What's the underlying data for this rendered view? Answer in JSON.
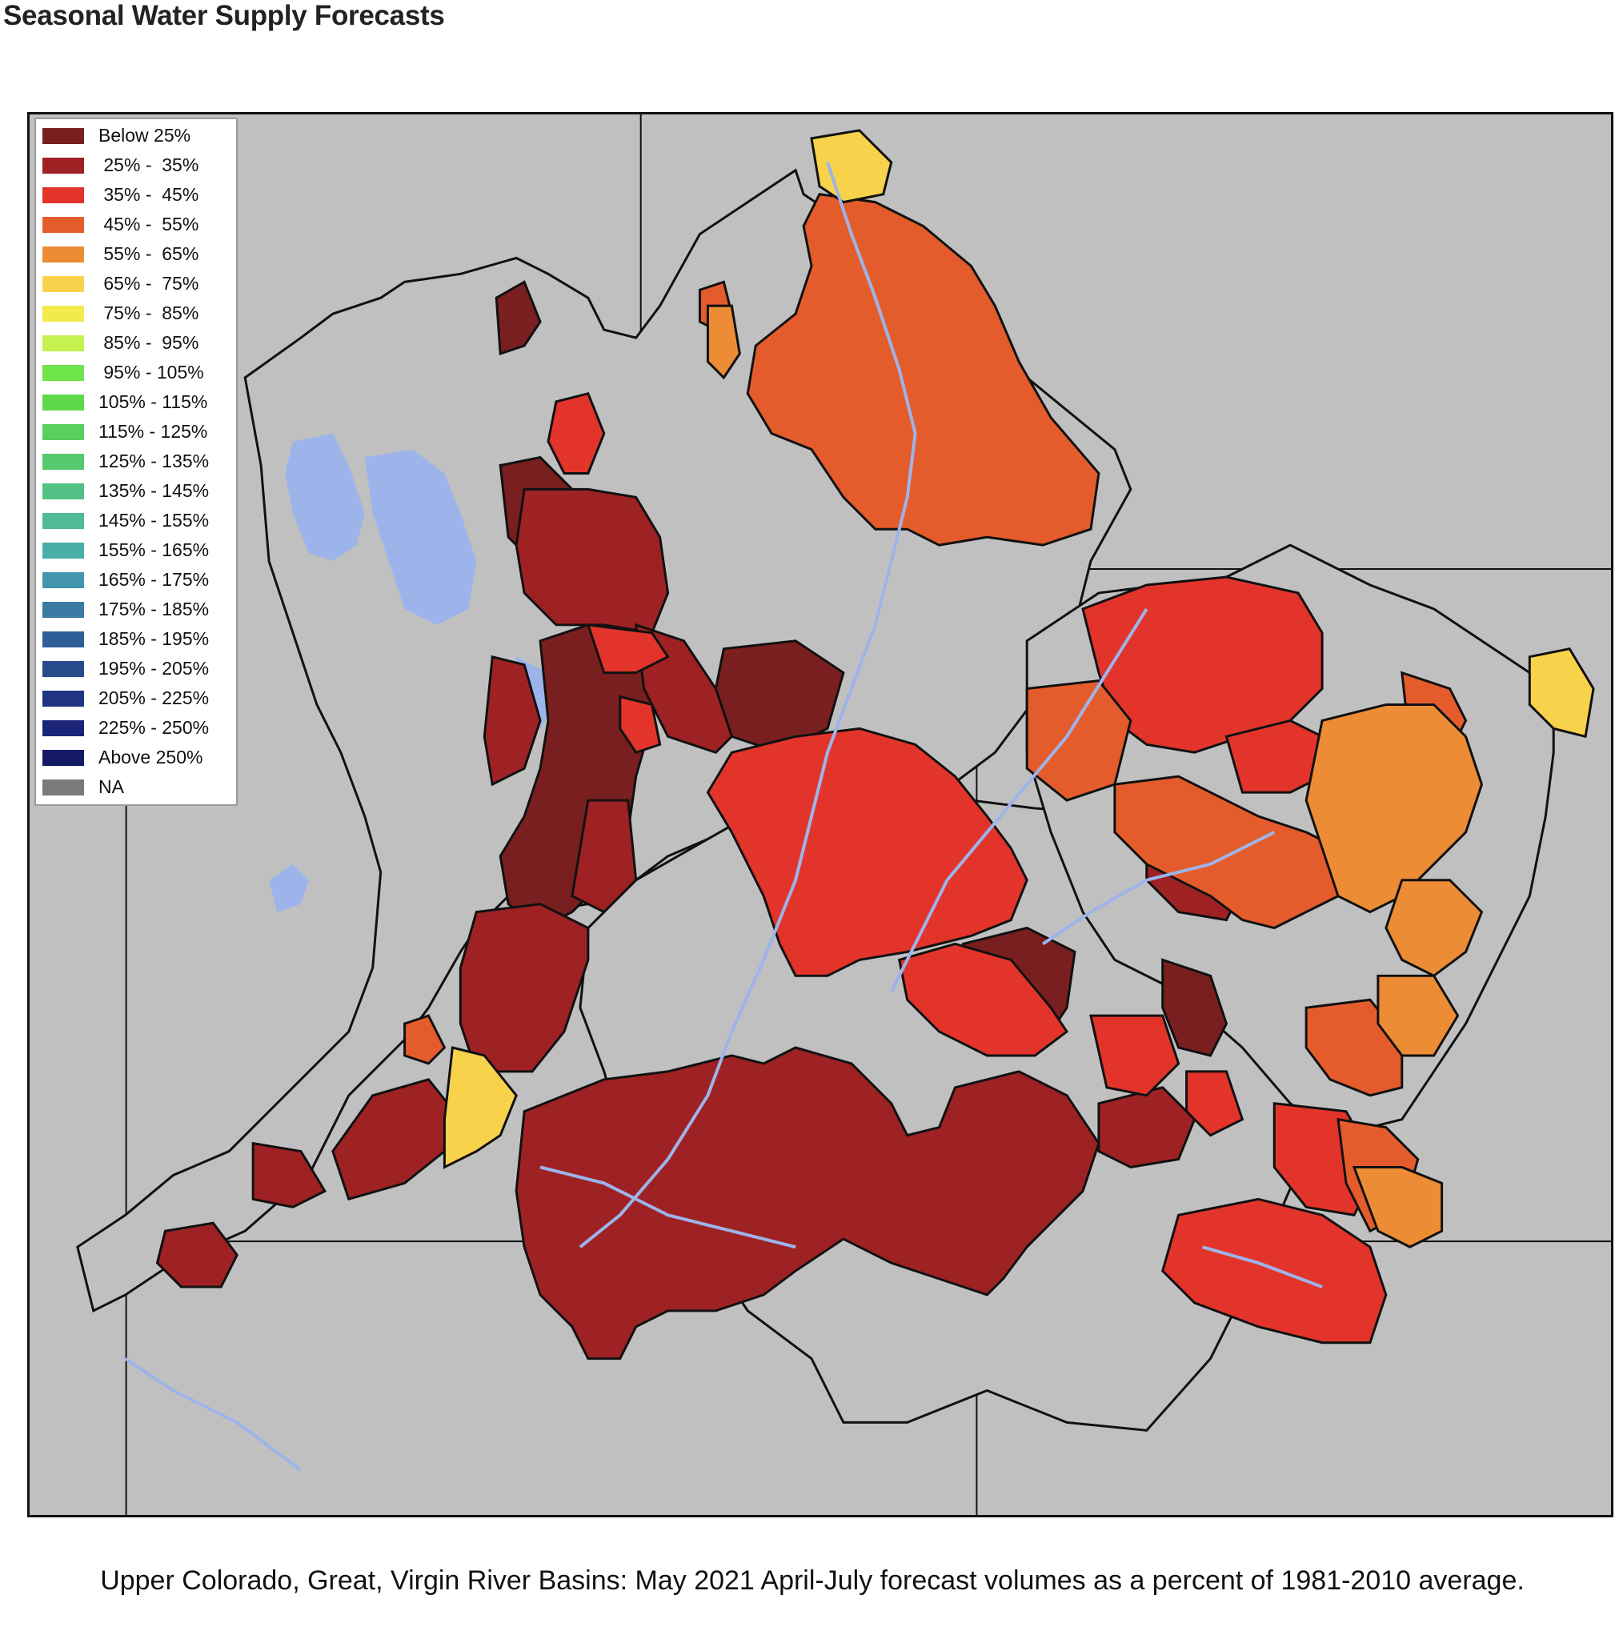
{
  "title": "Seasonal Water Supply Forecasts",
  "caption": "Upper Colorado, Great, Virgin River Basins: May 2021 April-July forecast volumes as a percent of 1981-2010 average.",
  "map_colors": {
    "background": "#c0c0c0",
    "water": "#9db4ea",
    "na": "#c0c0c0"
  },
  "legend": [
    {
      "label": "Below 25%",
      "color": "#7a1f1f"
    },
    {
      "label": " 25% -  35%",
      "color": "#9e2224"
    },
    {
      "label": " 35% -  45%",
      "color": "#e3342b"
    },
    {
      "label": " 45% -  55%",
      "color": "#e55c2c"
    },
    {
      "label": " 55% -  65%",
      "color": "#ec8c34"
    },
    {
      "label": " 65% -  75%",
      "color": "#f8d24a"
    },
    {
      "label": " 75% -  85%",
      "color": "#f3ea4b"
    },
    {
      "label": " 85% -  95%",
      "color": "#c4f24e"
    },
    {
      "label": " 95% - 105%",
      "color": "#6fe34a"
    },
    {
      "label": "105% - 115%",
      "color": "#5fd84a"
    },
    {
      "label": "115% - 125%",
      "color": "#58cf5e"
    },
    {
      "label": "125% - 135%",
      "color": "#55c96e"
    },
    {
      "label": "135% - 145%",
      "color": "#52c185"
    },
    {
      "label": "145% - 155%",
      "color": "#4fba98"
    },
    {
      "label": "155% - 165%",
      "color": "#4aaea8"
    },
    {
      "label": "165% - 175%",
      "color": "#4396ae"
    },
    {
      "label": "175% - 185%",
      "color": "#3a7aa3"
    },
    {
      "label": "185% - 195%",
      "color": "#305f97"
    },
    {
      "label": "195% - 205%",
      "color": "#284b8c"
    },
    {
      "label": "205% - 225%",
      "color": "#1f3582"
    },
    {
      "label": "225% - 250%",
      "color": "#1a2577"
    },
    {
      "label": "Above 250%",
      "color": "#141a66"
    },
    {
      "label": "NA",
      "color": "#7a7a7a"
    }
  ]
}
